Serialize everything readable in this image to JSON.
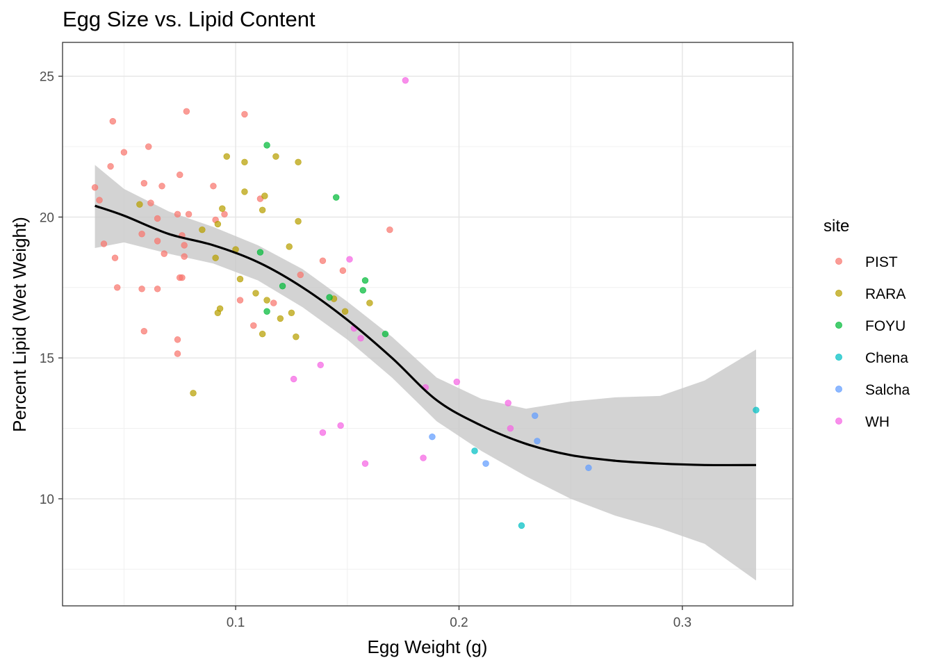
{
  "chart_data": {
    "type": "scatter",
    "title": "Egg Size vs. Lipid Content",
    "xlabel": "Egg Weight (g)",
    "ylabel": "Percent Lipid (Wet Weight)",
    "xlim": [
      0.0225,
      0.3495
    ],
    "ylim": [
      6.2,
      26.2
    ],
    "xticks": [
      0.1,
      0.2,
      0.3
    ],
    "xtick_labels": [
      "0.1",
      "0.2",
      "0.3"
    ],
    "yticks": [
      10,
      15,
      20,
      25
    ],
    "ytick_labels": [
      "10",
      "15",
      "20",
      "25"
    ],
    "grid": true,
    "legend": {
      "title": "site",
      "position": "right"
    },
    "series": [
      {
        "name": "PIST",
        "color": "#F8766D",
        "points": [
          [
            0.037,
            21.05
          ],
          [
            0.039,
            20.6
          ],
          [
            0.041,
            19.05
          ],
          [
            0.044,
            21.8
          ],
          [
            0.045,
            23.4
          ],
          [
            0.046,
            18.55
          ],
          [
            0.047,
            17.5
          ],
          [
            0.05,
            22.3
          ],
          [
            0.058,
            19.4
          ],
          [
            0.058,
            17.45
          ],
          [
            0.059,
            21.2
          ],
          [
            0.059,
            15.95
          ],
          [
            0.061,
            22.5
          ],
          [
            0.062,
            20.5
          ],
          [
            0.065,
            19.95
          ],
          [
            0.065,
            19.15
          ],
          [
            0.065,
            17.45
          ],
          [
            0.067,
            21.1
          ],
          [
            0.068,
            18.7
          ],
          [
            0.074,
            20.1
          ],
          [
            0.074,
            15.65
          ],
          [
            0.074,
            15.15
          ],
          [
            0.075,
            21.5
          ],
          [
            0.075,
            17.85
          ],
          [
            0.076,
            19.35
          ],
          [
            0.076,
            17.85
          ],
          [
            0.077,
            19.0
          ],
          [
            0.077,
            18.6
          ],
          [
            0.078,
            23.75
          ],
          [
            0.079,
            20.1
          ],
          [
            0.09,
            21.1
          ],
          [
            0.091,
            19.9
          ],
          [
            0.095,
            20.1
          ],
          [
            0.102,
            17.05
          ],
          [
            0.104,
            23.65
          ],
          [
            0.108,
            16.15
          ],
          [
            0.111,
            20.65
          ],
          [
            0.117,
            16.95
          ],
          [
            0.129,
            17.95
          ],
          [
            0.139,
            18.45
          ],
          [
            0.148,
            18.1
          ],
          [
            0.169,
            19.55
          ]
        ]
      },
      {
        "name": "RARA",
        "color": "#B79F00",
        "points": [
          [
            0.057,
            20.45
          ],
          [
            0.081,
            13.75
          ],
          [
            0.085,
            19.55
          ],
          [
            0.091,
            18.55
          ],
          [
            0.092,
            16.6
          ],
          [
            0.092,
            19.75
          ],
          [
            0.093,
            16.75
          ],
          [
            0.094,
            20.3
          ],
          [
            0.096,
            22.15
          ],
          [
            0.1,
            18.85
          ],
          [
            0.102,
            17.8
          ],
          [
            0.104,
            21.95
          ],
          [
            0.104,
            20.9
          ],
          [
            0.109,
            17.3
          ],
          [
            0.112,
            20.25
          ],
          [
            0.112,
            15.85
          ],
          [
            0.113,
            20.75
          ],
          [
            0.114,
            17.05
          ],
          [
            0.118,
            22.15
          ],
          [
            0.12,
            16.4
          ],
          [
            0.124,
            18.95
          ],
          [
            0.125,
            16.6
          ],
          [
            0.127,
            15.75
          ],
          [
            0.128,
            21.95
          ],
          [
            0.128,
            19.85
          ],
          [
            0.144,
            17.1
          ],
          [
            0.149,
            16.65
          ],
          [
            0.16,
            16.95
          ]
        ]
      },
      {
        "name": "FOYU",
        "color": "#00BA38",
        "points": [
          [
            0.111,
            18.75
          ],
          [
            0.114,
            22.55
          ],
          [
            0.114,
            16.65
          ],
          [
            0.121,
            17.55
          ],
          [
            0.142,
            17.15
          ],
          [
            0.145,
            20.7
          ],
          [
            0.157,
            17.4
          ],
          [
            0.158,
            17.75
          ],
          [
            0.167,
            15.85
          ]
        ]
      },
      {
        "name": "Chena",
        "color": "#00BFC4",
        "points": [
          [
            0.207,
            11.7
          ],
          [
            0.228,
            9.05
          ],
          [
            0.333,
            13.15
          ]
        ]
      },
      {
        "name": "Salcha",
        "color": "#619CFF",
        "points": [
          [
            0.188,
            12.2
          ],
          [
            0.212,
            11.25
          ],
          [
            0.234,
            12.95
          ],
          [
            0.235,
            12.05
          ],
          [
            0.258,
            11.1
          ]
        ]
      },
      {
        "name": "WH",
        "color": "#F564E3",
        "points": [
          [
            0.126,
            14.25
          ],
          [
            0.138,
            14.75
          ],
          [
            0.139,
            12.35
          ],
          [
            0.147,
            12.6
          ],
          [
            0.151,
            18.5
          ],
          [
            0.153,
            16.05
          ],
          [
            0.156,
            15.7
          ],
          [
            0.158,
            11.25
          ],
          [
            0.176,
            24.85
          ],
          [
            0.184,
            11.45
          ],
          [
            0.185,
            13.95
          ],
          [
            0.199,
            14.15
          ],
          [
            0.222,
            13.4
          ],
          [
            0.223,
            12.5
          ]
        ]
      }
    ],
    "smooth": {
      "color": "#000000",
      "ribbon_color": "#c8c8c8",
      "x": [
        0.037,
        0.05,
        0.07,
        0.09,
        0.11,
        0.13,
        0.15,
        0.17,
        0.19,
        0.21,
        0.23,
        0.25,
        0.27,
        0.29,
        0.31,
        0.333
      ],
      "y": [
        20.4,
        20.05,
        19.4,
        19.0,
        18.4,
        17.5,
        16.35,
        15.0,
        13.5,
        12.6,
        11.95,
        11.55,
        11.35,
        11.25,
        11.2,
        11.2
      ],
      "lower": [
        18.9,
        19.1,
        18.7,
        18.35,
        17.75,
        16.8,
        15.65,
        14.3,
        12.75,
        11.7,
        10.8,
        10.0,
        9.4,
        8.95,
        8.4,
        7.1
      ],
      "upper": [
        21.85,
        21.0,
        20.2,
        19.65,
        19.0,
        18.15,
        17.0,
        15.75,
        14.3,
        13.55,
        13.2,
        13.45,
        13.6,
        13.65,
        14.2,
        15.3
      ]
    }
  }
}
